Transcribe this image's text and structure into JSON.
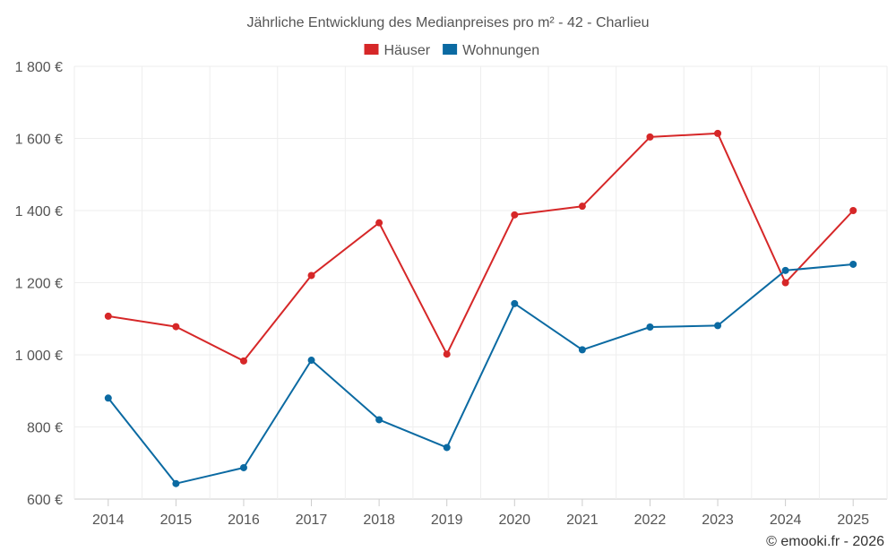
{
  "chart_data": {
    "type": "line",
    "title": "Jährliche Entwicklung des Medianpreises pro m² - 42 - Charlieu",
    "categories": [
      "2014",
      "2015",
      "2016",
      "2017",
      "2018",
      "2019",
      "2020",
      "2021",
      "2022",
      "2023",
      "2024",
      "2025"
    ],
    "series": [
      {
        "name": "Häuser",
        "color": "#d62728",
        "values": [
          1107,
          1078,
          983,
          1220,
          1366,
          1002,
          1388,
          1412,
          1604,
          1614,
          1200,
          1400
        ]
      },
      {
        "name": "Wohnungen",
        "color": "#0b6aa2",
        "values": [
          880,
          643,
          687,
          985,
          820,
          743,
          1142,
          1014,
          1077,
          1081,
          1234,
          1251
        ]
      }
    ],
    "ylim": [
      600,
      1800
    ],
    "yticks": [
      600,
      800,
      1000,
      1200,
      1400,
      1600,
      1800
    ],
    "ytick_labels": [
      "600 €",
      "800 €",
      "1 000 €",
      "1 200 €",
      "1 400 €",
      "1 600 €",
      "1 800 €"
    ],
    "xlabel": "",
    "ylabel": "",
    "grid": true,
    "legend_position": "top-center"
  },
  "credit": "© emooki.fr - 2026"
}
